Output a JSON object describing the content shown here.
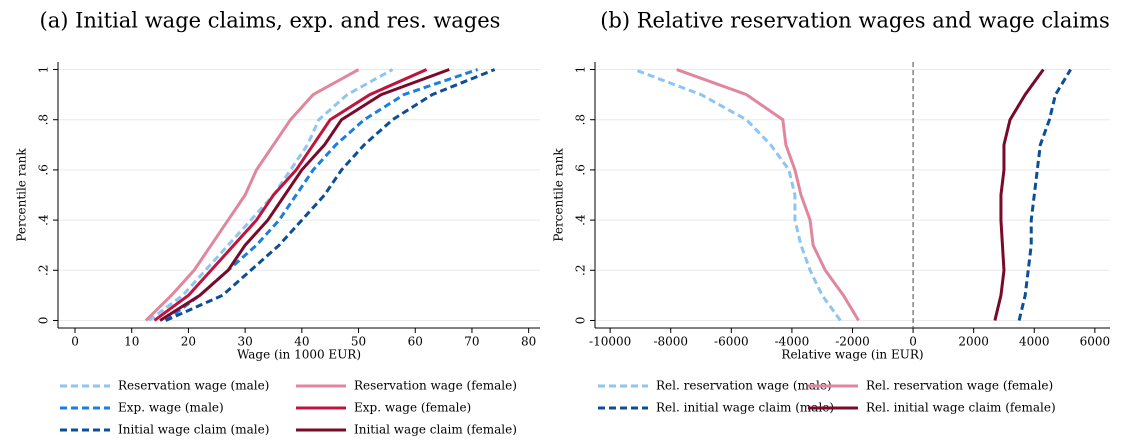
{
  "chart_data": [
    {
      "type": "line",
      "title": "(a) Initial wage claims, exp. and res. wages",
      "xlabel": "Wage (in 1000 EUR)",
      "ylabel": "Percentile rank",
      "y": [
        0,
        0.1,
        0.2,
        0.3,
        0.4,
        0.5,
        0.6,
        0.7,
        0.8,
        0.9,
        1
      ],
      "xlim": [
        -3,
        82
      ],
      "xticks": [
        0,
        10,
        20,
        30,
        40,
        50,
        60,
        70,
        80
      ],
      "ylim": [
        -0.03,
        1.03
      ],
      "yticks": [
        0,
        {
          "value": 0.2,
          "label": ".2"
        },
        {
          "value": 0.4,
          "label": ".4"
        },
        {
          "value": 0.6,
          "label": ".6"
        },
        {
          "value": 0.8,
          "label": ".8"
        },
        1
      ],
      "grid": true,
      "series": [
        {
          "name": "Reservation wage (male)",
          "color": "#8ec5f2",
          "dashed": true,
          "x": [
            13,
            19,
            23,
            27,
            31,
            35,
            38,
            41,
            43,
            48,
            56
          ]
        },
        {
          "name": "Reservation wage (female)",
          "color": "#e0879e",
          "dashed": false,
          "x": [
            12.5,
            17,
            21,
            24,
            27,
            30,
            32,
            35,
            38,
            42,
            50
          ]
        },
        {
          "name": "Exp. wage (male)",
          "color": "#1a7fe0",
          "dashed": true,
          "x": [
            16,
            22,
            27,
            32,
            36,
            39,
            42,
            46,
            51,
            58,
            71
          ]
        },
        {
          "name": "Exp. wage (female)",
          "color": "#c0143c",
          "dashed": false,
          "x": [
            14,
            20,
            24,
            28,
            32,
            35,
            39,
            42,
            45,
            52,
            62
          ]
        },
        {
          "name": "Initial wage claim (male)",
          "color": "#0d4f96",
          "dashed": true,
          "x": [
            16,
            26,
            31,
            36,
            40,
            44,
            47,
            51,
            56,
            63,
            74
          ]
        },
        {
          "name": "Initial wage claim (female)",
          "color": "#7a0a2a",
          "dashed": false,
          "x": [
            15,
            22,
            27,
            30,
            34,
            37,
            40,
            44,
            47,
            54,
            66
          ]
        }
      ]
    },
    {
      "type": "line",
      "title": "(b) Relative reservation wages and wage claims",
      "xlabel": "Relative wage (in EUR)",
      "ylabel": "Percentile rank",
      "y": [
        0,
        0.1,
        0.2,
        0.3,
        0.4,
        0.5,
        0.6,
        0.7,
        0.8,
        0.9,
        1
      ],
      "xlim": [
        -10500,
        6500
      ],
      "xticks": [
        -10000,
        -8000,
        -6000,
        -4000,
        -2000,
        0,
        2000,
        4000,
        6000
      ],
      "ylim": [
        -0.03,
        1.03
      ],
      "yticks": [
        0,
        {
          "value": 0.2,
          "label": ".2"
        },
        {
          "value": 0.4,
          "label": ".4"
        },
        {
          "value": 0.6,
          "label": ".6"
        },
        {
          "value": 0.8,
          "label": ".8"
        },
        1
      ],
      "grid": true,
      "xline": 0,
      "series": [
        {
          "name": "Rel. reservation wage (male)",
          "color": "#8ec5f2",
          "dashed": true,
          "x": [
            -2400,
            -3000,
            -3400,
            -3700,
            -3900,
            -3900,
            -4100,
            -4700,
            -5500,
            -7000,
            -9200
          ]
        },
        {
          "name": "Rel. reservation wage (female)",
          "color": "#e0879e",
          "dashed": false,
          "x": [
            -1800,
            -2300,
            -2900,
            -3300,
            -3400,
            -3700,
            -3900,
            -4200,
            -4300,
            -5500,
            -7800
          ]
        },
        {
          "name": "Rel. initial wage claim (male)",
          "color": "#0d4f96",
          "dashed": true,
          "x": [
            3500,
            3700,
            3800,
            3900,
            3900,
            4000,
            4100,
            4200,
            4500,
            4700,
            5200
          ]
        },
        {
          "name": "Rel. initial wage claim (female)",
          "color": "#7a0a2a",
          "dashed": false,
          "x": [
            2700,
            2900,
            3000,
            2950,
            2900,
            2900,
            3000,
            3000,
            3200,
            3700,
            4300
          ]
        }
      ]
    }
  ]
}
